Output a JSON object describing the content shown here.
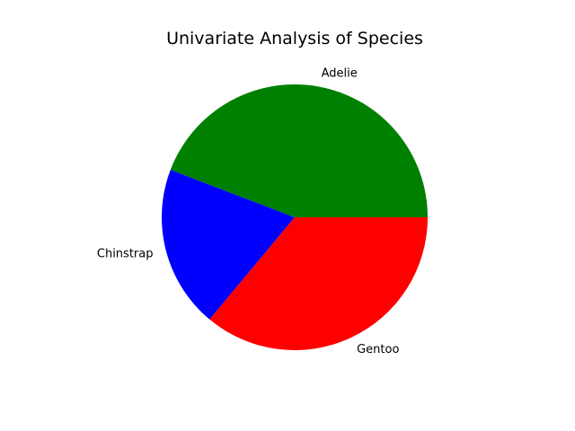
{
  "chart_data": {
    "type": "pie",
    "title": "Univariate Analysis of Species",
    "categories": [
      "Adelie",
      "Chinstrap",
      "Gentoo"
    ],
    "values": [
      152,
      68,
      124
    ],
    "colors": [
      "#008000",
      "#0000ff",
      "#ff0000"
    ],
    "start_angle_deg": 0,
    "direction": "counterclockwise"
  }
}
